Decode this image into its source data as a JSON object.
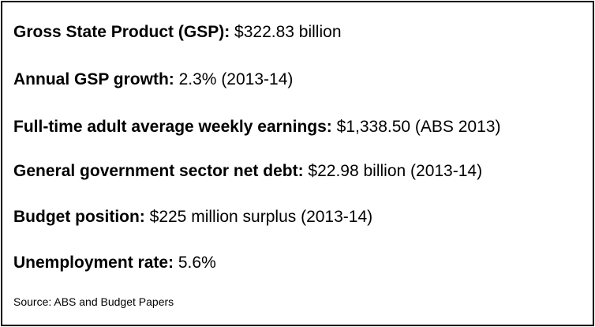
{
  "items": [
    {
      "label": "Gross State Product (GSP):",
      "value": " $322.83 billion"
    },
    {
      "label": "Annual GSP growth:",
      "value": " 2.3% (2013-14)"
    },
    {
      "label": "Full-time adult average weekly earnings:",
      "value": " $1,338.50 (ABS 2013)"
    },
    {
      "label": "General government sector net debt:",
      "value": " $22.98 billion (2013-14)"
    },
    {
      "label": "Budget position:",
      "value": " $225 million surplus (2013-14)"
    },
    {
      "label": "Unemployment rate:",
      "value": " 5.6%"
    }
  ],
  "source": "Source: ABS and Budget Papers"
}
